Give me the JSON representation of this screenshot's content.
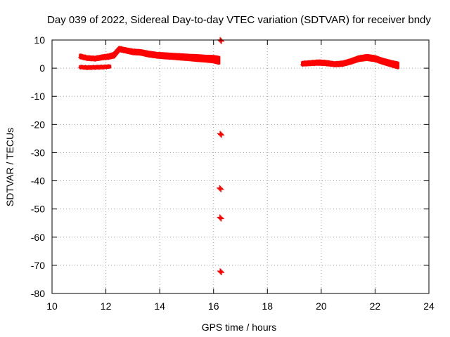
{
  "chart_data": {
    "type": "scatter",
    "title": "Day 039 of 2022, Sidereal Day-to-day VTEC variation (SDTVAR) for receiver bndy",
    "xlabel": "GPS time / hours",
    "ylabel": "SDTVAR / TECUs",
    "xlim": [
      10,
      24
    ],
    "ylim": [
      -80,
      10
    ],
    "xticks": [
      10,
      12,
      14,
      16,
      18,
      20,
      22,
      24
    ],
    "yticks": [
      10,
      0,
      -10,
      -20,
      -30,
      -40,
      -50,
      -60,
      -70,
      -80
    ],
    "grid": true,
    "legend": "none",
    "series_color": "#ff0000",
    "bands": [
      {
        "name": "segment-1-upper",
        "x": [
          11.05,
          11.3,
          11.6,
          11.9,
          12.1,
          12.3,
          12.5,
          12.8,
          13.0,
          13.3,
          13.6,
          13.9,
          14.2,
          14.5,
          14.8,
          15.1,
          15.4,
          15.7,
          16.0,
          16.2
        ],
        "center": [
          4.2,
          3.6,
          3.4,
          3.9,
          4.1,
          4.6,
          6.8,
          6.2,
          5.8,
          5.6,
          5.0,
          4.6,
          4.4,
          4.2,
          4.0,
          3.8,
          3.6,
          3.4,
          3.2,
          2.8
        ],
        "spread": [
          1.0,
          1.0,
          1.0,
          1.1,
          1.2,
          1.4,
          1.2,
          1.2,
          1.3,
          1.3,
          1.4,
          1.4,
          1.5,
          1.5,
          1.6,
          1.6,
          1.8,
          1.8,
          2.0,
          2.2
        ]
      },
      {
        "name": "segment-1-lower",
        "x": [
          11.05,
          11.3,
          11.6,
          11.9,
          12.15
        ],
        "center": [
          0.4,
          0.2,
          0.3,
          0.4,
          0.6
        ],
        "spread": [
          0.5,
          0.6,
          0.6,
          0.6,
          0.5
        ]
      },
      {
        "name": "segment-2",
        "x": [
          19.3,
          19.6,
          19.9,
          20.2,
          20.5,
          20.8,
          21.1,
          21.4,
          21.7,
          22.0,
          22.3,
          22.6,
          22.85
        ],
        "center": [
          1.6,
          1.8,
          2.0,
          1.8,
          1.4,
          1.6,
          2.4,
          3.4,
          3.8,
          3.4,
          2.4,
          1.6,
          1.0
        ],
        "spread": [
          1.0,
          1.1,
          1.2,
          1.2,
          1.1,
          1.2,
          1.3,
          1.4,
          1.5,
          1.5,
          1.5,
          1.6,
          1.8
        ]
      }
    ],
    "points": [
      {
        "x": 16.27,
        "y": 9.8
      },
      {
        "x": 16.27,
        "y": -23.5
      },
      {
        "x": 16.25,
        "y": -42.8
      },
      {
        "x": 16.26,
        "y": -53.2
      },
      {
        "x": 16.27,
        "y": -72.3
      }
    ]
  }
}
